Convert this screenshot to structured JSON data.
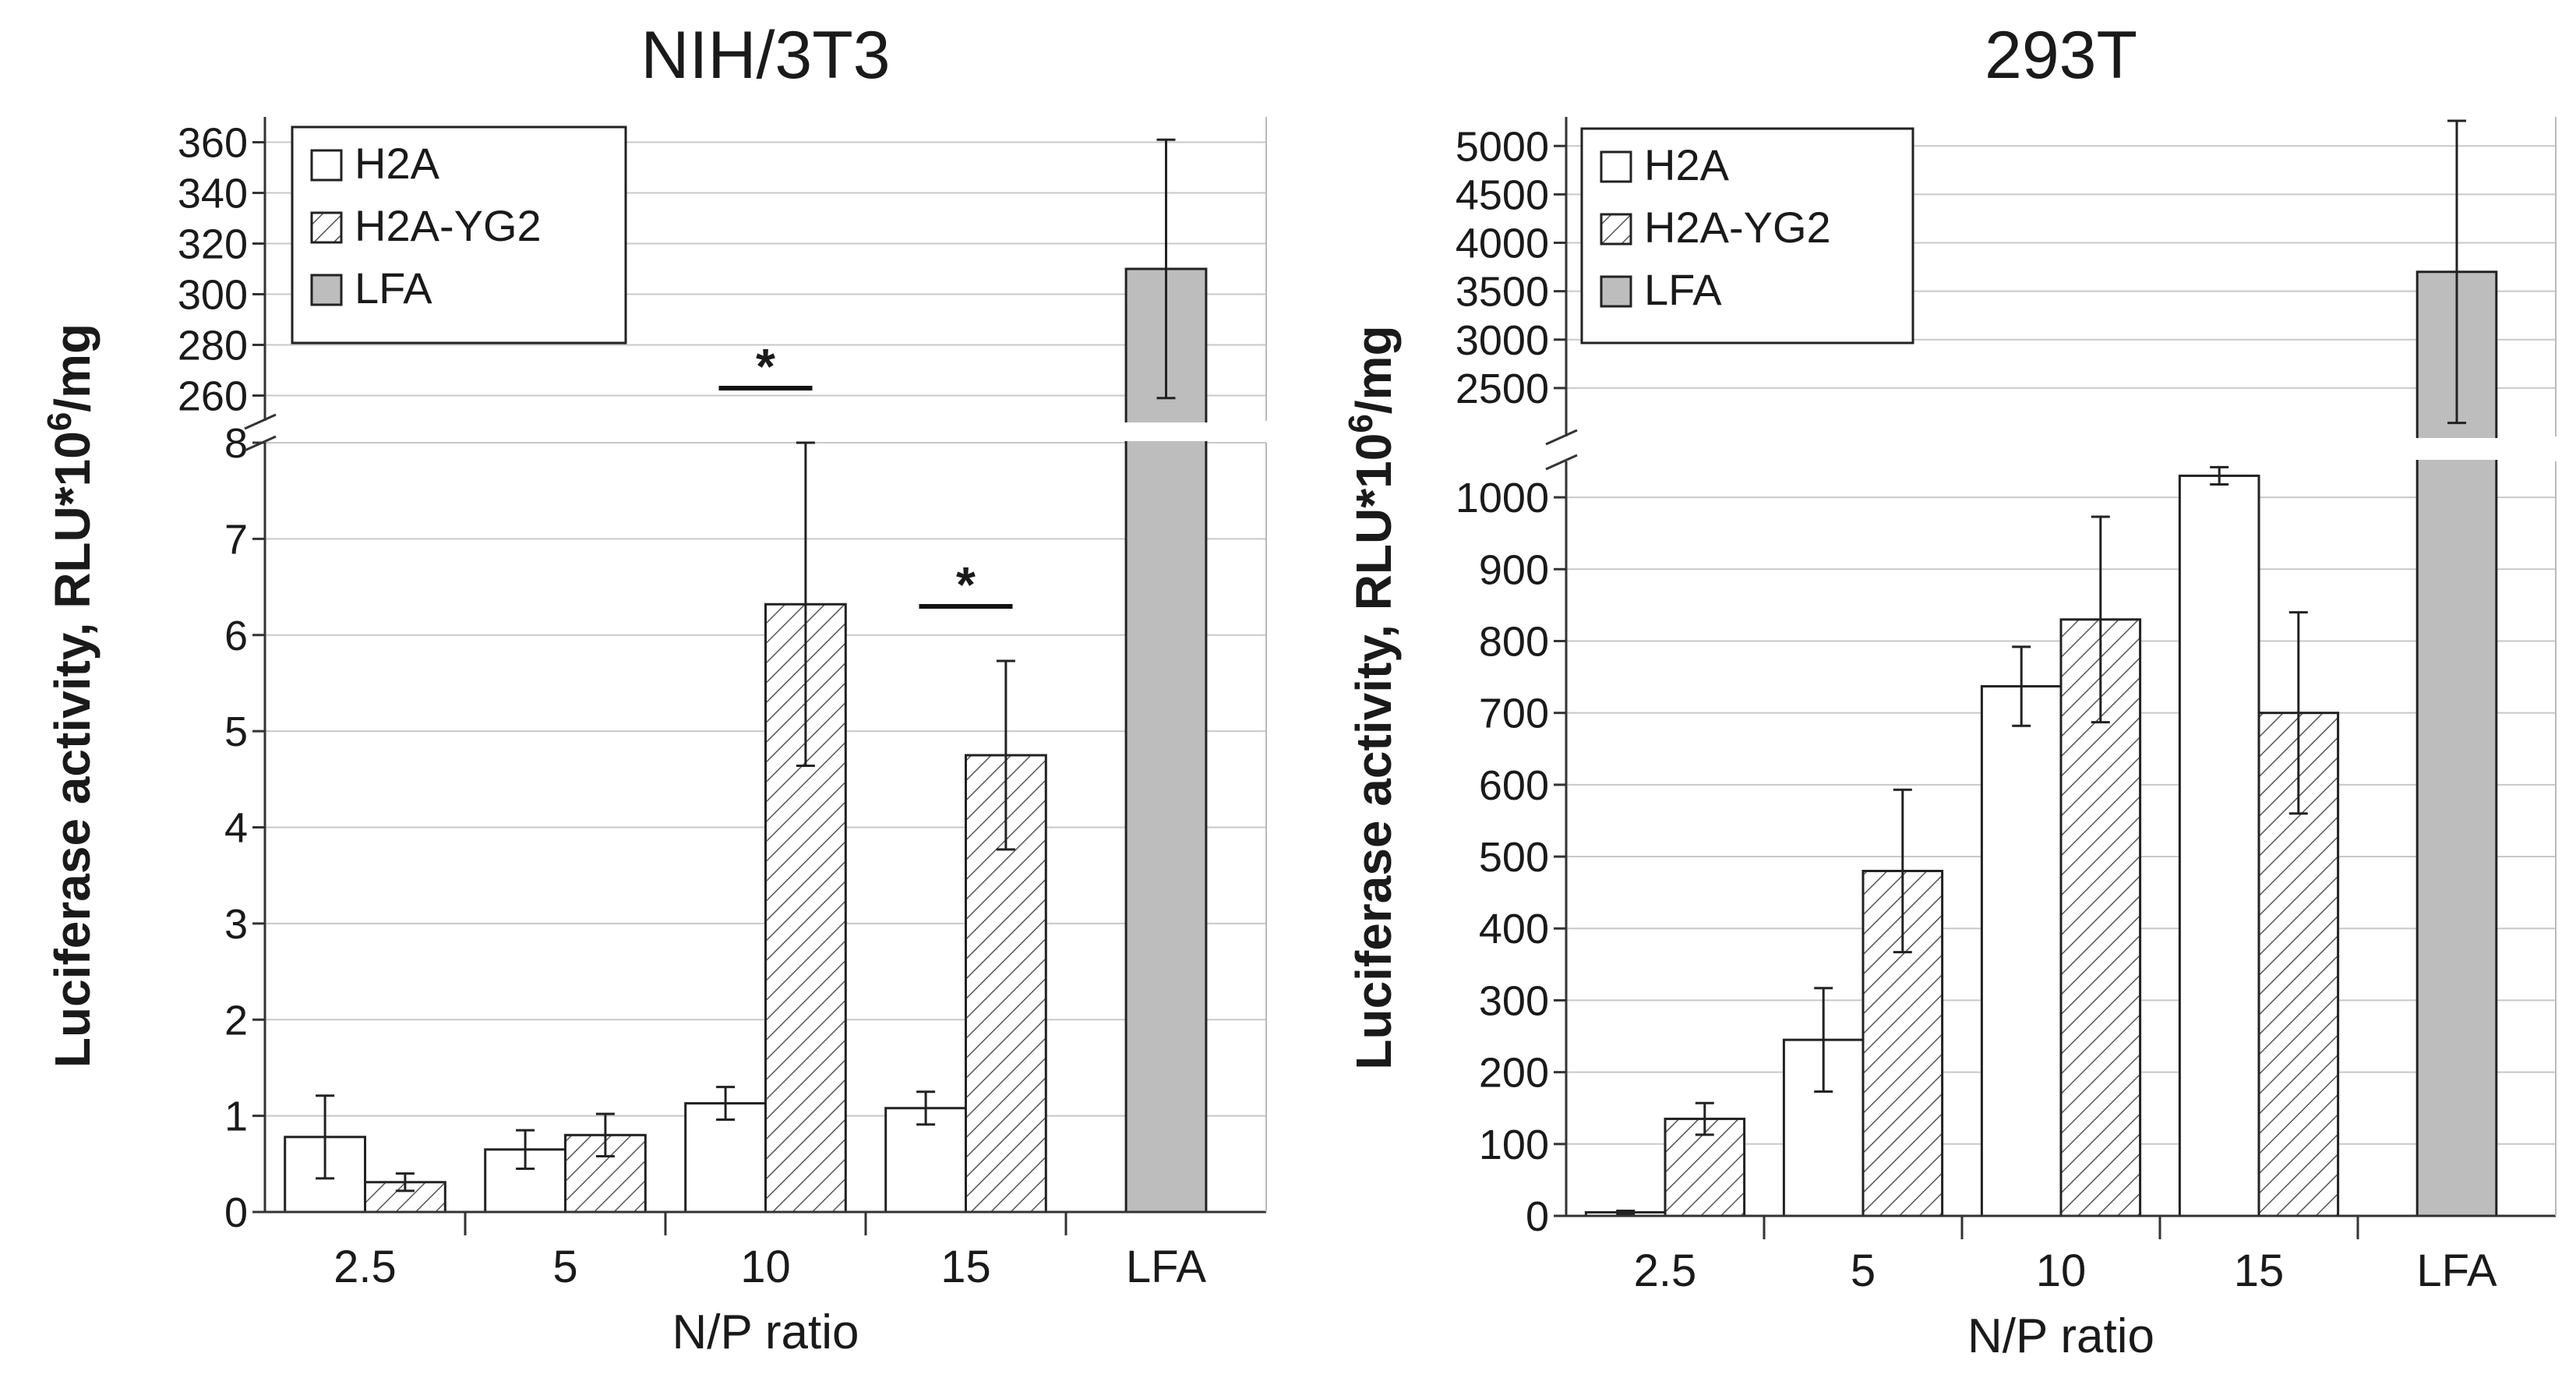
{
  "chart_data": [
    {
      "type": "bar",
      "title": "NIH/3T3",
      "xlabel": "N/P ratio",
      "ylabel": "Luciferase activity, RLU*10",
      "ylabel_sup": "6",
      "ylabel_suffix": "/mg",
      "categories": [
        "2.5",
        "5",
        "10",
        "15",
        "LFA"
      ],
      "broken_axis": true,
      "lower_range": [
        0,
        8
      ],
      "lower_ticks": [
        "0",
        "1",
        "2",
        "3",
        "4",
        "5",
        "6",
        "7",
        "8"
      ],
      "upper_range": [
        250,
        370
      ],
      "upper_ticks": [
        "260",
        "280",
        "300",
        "320",
        "340",
        "360"
      ],
      "series": [
        {
          "name": "H2A",
          "pattern": "white",
          "values": [
            0.78,
            0.65,
            1.13,
            1.08,
            null
          ],
          "errors": [
            0.43,
            0.2,
            0.17,
            0.17,
            null
          ]
        },
        {
          "name": "H2A-YG2",
          "pattern": "hatched",
          "values": [
            0.31,
            0.8,
            6.32,
            4.75,
            null
          ],
          "errors": [
            0.09,
            0.22,
            1.68,
            0.98,
            null
          ]
        },
        {
          "name": "LFA",
          "pattern": "gray",
          "values": [
            null,
            null,
            null,
            null,
            310
          ],
          "errors": [
            null,
            null,
            null,
            null,
            51
          ]
        }
      ],
      "significance": [
        {
          "category": "10",
          "label": "*"
        },
        {
          "category": "15",
          "label": "*"
        }
      ]
    },
    {
      "type": "bar",
      "title": "293T",
      "xlabel": "N/P ratio",
      "ylabel": "Luciferase activity, RLU*10",
      "ylabel_sup": "6",
      "ylabel_suffix": "/mg",
      "categories": [
        "2.5",
        "5",
        "10",
        "15",
        "LFA"
      ],
      "broken_axis": true,
      "lower_range": [
        0,
        1050
      ],
      "lower_ticks": [
        "0",
        "100",
        "200",
        "300",
        "400",
        "500",
        "600",
        "700",
        "800",
        "900",
        "1000"
      ],
      "upper_range": [
        2000,
        5300
      ],
      "upper_ticks": [
        "2500",
        "3000",
        "3500",
        "4000",
        "4500",
        "5000"
      ],
      "series": [
        {
          "name": "H2A",
          "pattern": "white",
          "values": [
            5,
            245,
            737,
            1030,
            null
          ],
          "errors": [
            2,
            72,
            55,
            12,
            null
          ]
        },
        {
          "name": "H2A-YG2",
          "pattern": "hatched",
          "values": [
            135,
            480,
            830,
            700,
            null
          ],
          "errors": [
            22,
            113,
            143,
            140,
            null
          ]
        },
        {
          "name": "LFA",
          "pattern": "gray",
          "values": [
            null,
            null,
            null,
            null,
            3700
          ],
          "errors": [
            null,
            null,
            null,
            null,
            1560
          ]
        }
      ],
      "significance": []
    }
  ],
  "colors": {
    "bar_edge": "#222222",
    "h2a_fill": "#ffffff",
    "hatch_line": "#555555",
    "lfa_fill": "#bdbdbd",
    "grid": "#c8c8c8",
    "text": "#1a1a1a"
  }
}
